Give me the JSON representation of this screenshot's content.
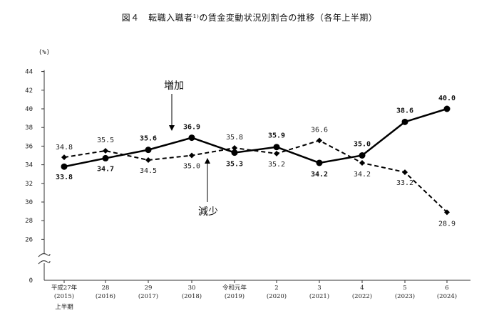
{
  "title": "図４　転職入職者¹⁾の賃金変動状況別割合の推移（各年上半期）",
  "chart_data": {
    "type": "line",
    "ylabel": "(%)",
    "ylim": [
      26,
      44
    ],
    "yticks": [
      "0",
      "26",
      "28",
      "30",
      "32",
      "34",
      "36",
      "38",
      "40",
      "42",
      "44"
    ],
    "y_axis_break": true,
    "categories": [
      {
        "line1": "平成27年",
        "line2": "(2015)",
        "line3": "上半期"
      },
      {
        "line1": "28",
        "line2": "(2016)",
        "line3": ""
      },
      {
        "line1": "29",
        "line2": "(2017)",
        "line3": ""
      },
      {
        "line1": "30",
        "line2": "(2018)",
        "line3": ""
      },
      {
        "line1": "令和元年",
        "line2": "(2019)",
        "line3": ""
      },
      {
        "line1": "2",
        "line2": "(2020)",
        "line3": ""
      },
      {
        "line1": "3",
        "line2": "(2021)",
        "line3": ""
      },
      {
        "line1": "4",
        "line2": "(2022)",
        "line3": ""
      },
      {
        "line1": "5",
        "line2": "(2023)",
        "line3": ""
      },
      {
        "line1": "6",
        "line2": "(2024)",
        "line3": ""
      }
    ],
    "series": [
      {
        "name": "増加",
        "style": "solid",
        "marker": "circle",
        "values": [
          33.8,
          34.7,
          35.6,
          36.9,
          35.3,
          35.9,
          34.2,
          35.0,
          38.6,
          40.0
        ],
        "labels": [
          "33.8",
          "34.7",
          "35.6",
          "36.9",
          "35.3",
          "35.9",
          "34.2",
          "35.0",
          "38.6",
          "40.0"
        ]
      },
      {
        "name": "減少",
        "style": "dashed",
        "marker": "diamond",
        "values": [
          34.8,
          35.5,
          34.5,
          35.0,
          35.8,
          35.2,
          36.6,
          34.2,
          33.2,
          28.9
        ],
        "labels": [
          "34.8",
          "35.5",
          "34.5",
          "35.0",
          "35.8",
          "35.2",
          "36.6",
          "34.2",
          "33.2",
          "28.9"
        ]
      }
    ],
    "grid": false,
    "colors": {
      "line": "#000000"
    }
  }
}
